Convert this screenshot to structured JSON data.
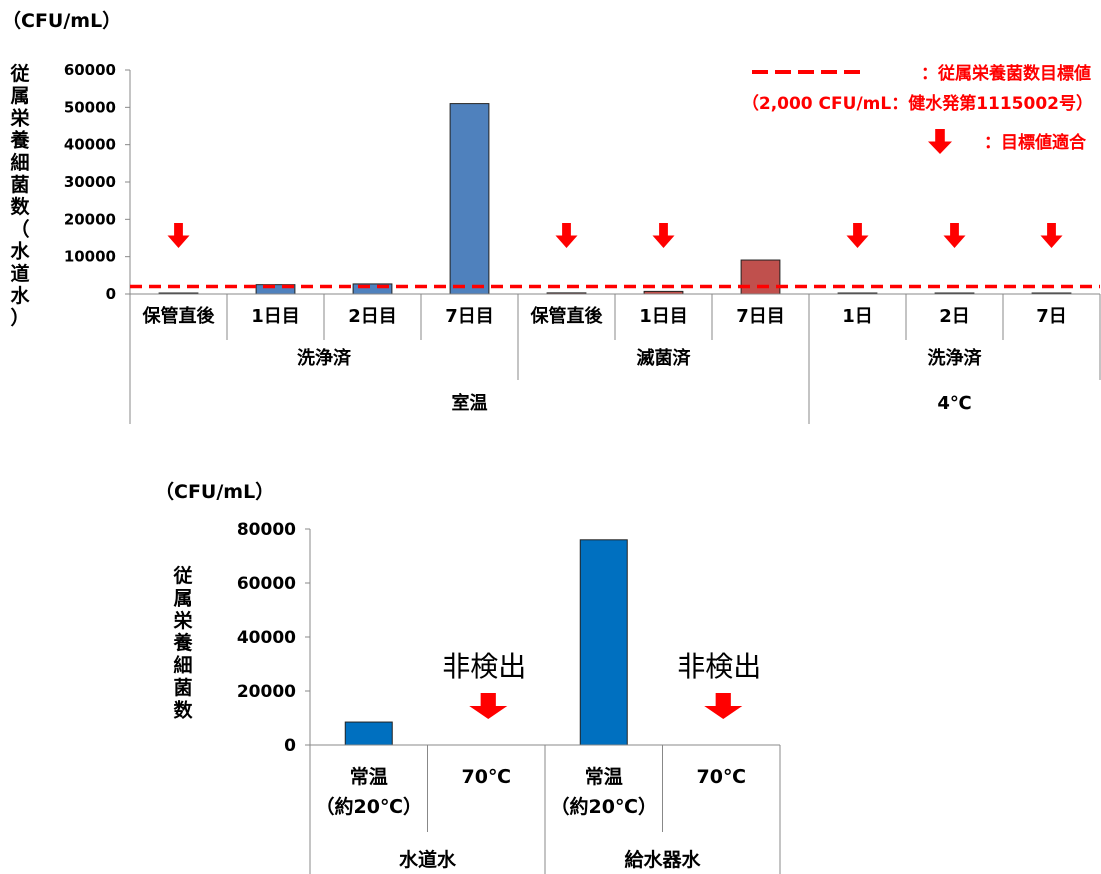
{
  "chart_data": [
    {
      "type": "bar",
      "unit_label": "（CFU/mL）",
      "ylabel": "従属栄養細菌数（水道水）",
      "ylim": [
        0,
        60000
      ],
      "yticks": [
        "0",
        "10000",
        "20000",
        "30000",
        "40000",
        "50000",
        "60000"
      ],
      "categories": [
        "保管直後",
        "1日目",
        "2日目",
        "7日目",
        "保管直後",
        "1日目",
        "7日目",
        "1日",
        "2日",
        "7日"
      ],
      "values": [
        100,
        2500,
        2700,
        51000,
        300,
        700,
        9100,
        0,
        200,
        150
      ],
      "bar_colors": [
        "#4f81bd",
        "#4f81bd",
        "#4f81bd",
        "#4f81bd",
        "#c0504d",
        "#c0504d",
        "#c0504d",
        "#4f81bd",
        "#4f81bd",
        "#4f81bd"
      ],
      "arrows": [
        true,
        false,
        false,
        false,
        true,
        true,
        false,
        true,
        true,
        true
      ],
      "group_level1": [
        {
          "label": "洗浄済",
          "span": [
            0,
            4
          ]
        },
        {
          "label": "滅菌済",
          "span": [
            4,
            7
          ]
        },
        {
          "label": "洗浄済",
          "span": [
            7,
            10
          ]
        }
      ],
      "group_level2": [
        {
          "label": "室温",
          "span": [
            0,
            7
          ]
        },
        {
          "label": "4℃",
          "span": [
            7,
            10
          ]
        }
      ],
      "reference_line": {
        "value": 2000,
        "color": "#ff0000",
        "style": "dashed"
      },
      "legend": {
        "line_label": "：従属栄養菌数目標値",
        "line_note": "（2,000 CFU/mL：健水発第1115002号）",
        "arrow_label": "：目標値適合",
        "placement": "top-right"
      }
    },
    {
      "type": "bar",
      "unit_label": "（CFU/mL）",
      "ylabel": "従属栄養細菌数",
      "ylim": [
        0,
        80000
      ],
      "yticks": [
        "0",
        "20000",
        "40000",
        "60000",
        "80000"
      ],
      "categories": [
        [
          "常温",
          "（約20℃）"
        ],
        [
          "70℃"
        ],
        [
          "常温",
          "（約20℃）"
        ],
        [
          "70℃"
        ]
      ],
      "values": [
        8500,
        0,
        76000,
        0
      ],
      "bar_colors": [
        "#0070c0",
        "#0070c0",
        "#0070c0",
        "#0070c0"
      ],
      "annotations": [
        "",
        "非検出",
        "",
        "非検出"
      ],
      "arrows": [
        false,
        true,
        false,
        true
      ],
      "group_level1": [
        {
          "label": "水道水",
          "span": [
            0,
            2
          ]
        },
        {
          "label": "給水器水",
          "span": [
            2,
            4
          ]
        }
      ]
    }
  ]
}
